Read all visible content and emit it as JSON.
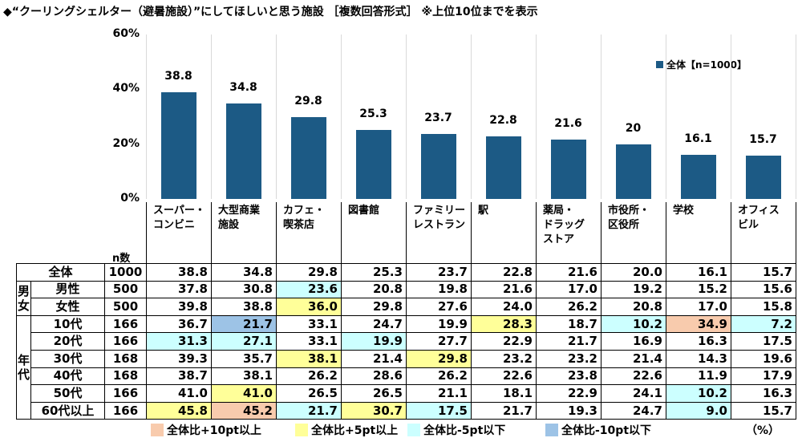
{
  "title": "◆“クーリングシェルター（避暑施設）”にしてほしいと思う施設 ［複数回答形式］ ※上位10位までを表示",
  "chart_data": {
    "type": "bar",
    "categories": [
      "スーパー・\nコンビニ",
      "大型商業\n施設",
      "カフェ・\n喫茶店",
      "図書館",
      "ファミリー\nレストラン",
      "駅",
      "薬局・\nドラッグ\nストア",
      "市役所・\n区役所",
      "学校",
      "オフィス\nビル"
    ],
    "series": [
      {
        "name": "全体【n=1000】",
        "values": [
          38.8,
          34.8,
          29.8,
          25.3,
          23.7,
          22.8,
          21.6,
          20.0,
          16.1,
          15.7
        ]
      }
    ],
    "ylim": [
      0,
      60
    ],
    "yticks": [
      "0%",
      "20%",
      "40%",
      "60%"
    ],
    "bar_color": "#1c5a85",
    "legend_placement": "top-right",
    "grid": "vertical separators"
  },
  "table": {
    "n_header": "n数",
    "unit": "（%）",
    "groups": [
      {
        "label": "",
        "rows": [
          0
        ]
      },
      {
        "label": "男\n女",
        "rows": [
          1,
          2
        ]
      },
      {
        "label": "年\n代",
        "rows": [
          3,
          4,
          5,
          6,
          7,
          8
        ]
      }
    ],
    "rows": [
      {
        "label": "全体",
        "n": "1000",
        "values": [
          "38.8",
          "34.8",
          "29.8",
          "25.3",
          "23.7",
          "22.8",
          "21.6",
          "20.0",
          "16.1",
          "15.7"
        ],
        "hl": [
          "",
          "",
          "",
          "",
          "",
          "",
          "",
          "",
          "",
          ""
        ]
      },
      {
        "label": "男性",
        "n": "500",
        "values": [
          "37.8",
          "30.8",
          "23.6",
          "20.8",
          "19.8",
          "21.6",
          "17.0",
          "19.2",
          "15.2",
          "15.6"
        ],
        "hl": [
          "",
          "",
          "m5",
          "",
          "",
          "",
          "",
          "",
          "",
          ""
        ]
      },
      {
        "label": "女性",
        "n": "500",
        "values": [
          "39.8",
          "38.8",
          "36.0",
          "29.8",
          "27.6",
          "24.0",
          "26.2",
          "20.8",
          "17.0",
          "15.8"
        ],
        "hl": [
          "",
          "",
          "p5",
          "",
          "",
          "",
          "",
          "",
          "",
          ""
        ]
      },
      {
        "label": "10代",
        "n": "166",
        "values": [
          "36.7",
          "21.7",
          "33.1",
          "24.7",
          "19.9",
          "28.3",
          "18.7",
          "10.2",
          "34.9",
          "7.2"
        ],
        "hl": [
          "",
          "m10",
          "",
          "",
          "",
          "p5",
          "",
          "m5",
          "p10",
          "m5"
        ]
      },
      {
        "label": "20代",
        "n": "166",
        "values": [
          "31.3",
          "27.1",
          "33.1",
          "19.9",
          "27.7",
          "22.9",
          "21.7",
          "16.9",
          "16.3",
          "17.5"
        ],
        "hl": [
          "m5",
          "m5",
          "",
          "m5",
          "",
          "",
          "",
          "",
          "",
          ""
        ]
      },
      {
        "label": "30代",
        "n": "168",
        "values": [
          "39.3",
          "35.7",
          "38.1",
          "21.4",
          "29.8",
          "23.2",
          "23.2",
          "21.4",
          "14.3",
          "19.6"
        ],
        "hl": [
          "",
          "",
          "p5",
          "",
          "p5",
          "",
          "",
          "",
          "",
          ""
        ]
      },
      {
        "label": "40代",
        "n": "168",
        "values": [
          "38.7",
          "38.1",
          "26.2",
          "28.6",
          "26.2",
          "22.6",
          "23.8",
          "22.6",
          "11.9",
          "17.9"
        ],
        "hl": [
          "",
          "",
          "",
          "",
          "",
          "",
          "",
          "",
          "",
          ""
        ]
      },
      {
        "label": "50代",
        "n": "166",
        "values": [
          "41.0",
          "41.0",
          "26.5",
          "26.5",
          "21.1",
          "18.1",
          "22.9",
          "24.1",
          "10.2",
          "16.3"
        ],
        "hl": [
          "",
          "p5",
          "",
          "",
          "",
          "",
          "",
          "",
          "m5",
          ""
        ]
      },
      {
        "label": "60代以上",
        "n": "166",
        "values": [
          "45.8",
          "45.2",
          "21.7",
          "30.7",
          "17.5",
          "21.7",
          "19.3",
          "24.7",
          "9.0",
          "15.7"
        ],
        "hl": [
          "p5",
          "p10",
          "m5",
          "p5",
          "m5",
          "",
          "",
          "",
          "m5",
          ""
        ]
      }
    ],
    "highlight_colors": {
      "p10": "#f8cbad",
      "p5": "#ffff99",
      "m5": "#ccffff",
      "m10": "#9dc3e6"
    },
    "legend": [
      {
        "key": "p10",
        "label": "全体比+10pt以上"
      },
      {
        "key": "p5",
        "label": "全体比+5pt以上"
      },
      {
        "key": "m5",
        "label": "全体比-5pt以下"
      },
      {
        "key": "m10",
        "label": "全体比-10pt以下"
      }
    ]
  }
}
